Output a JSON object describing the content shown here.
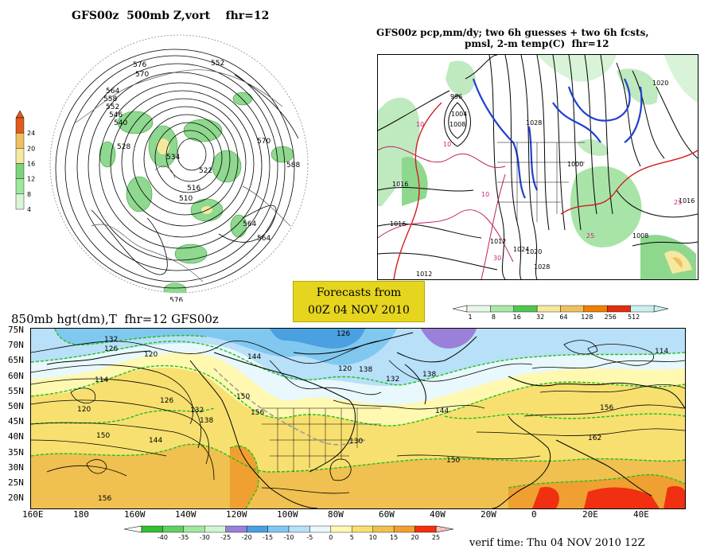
{
  "panel1": {
    "title": "GFS00z  500mb Z,vort    fhr=12",
    "colorbar_ticks": [
      "24",
      "20",
      "16",
      "12",
      "8",
      "4"
    ],
    "colorbar_colors": [
      "#e05a1a",
      "#f0c060",
      "#f5e9a0",
      "#7dd47d",
      "#9ee89e",
      "#d8f5d8"
    ],
    "contour_labels": [
      "576",
      "570",
      "564",
      "558",
      "552",
      "546",
      "540",
      "534",
      "528",
      "522",
      "516",
      "510",
      "552",
      "564",
      "576",
      "570",
      "564",
      "588"
    ]
  },
  "panel2": {
    "title_line1": "GFS00z pcp,mm/dy; two 6h guesses + two 6h fcsts,",
    "title_line2": "pmsl, 2-m temp(C)  fhr=12",
    "colorbar_ticks": [
      "1",
      "8",
      "16",
      "32",
      "64",
      "128",
      "256",
      "512"
    ],
    "colorbar_colors": [
      "#e8f8e8",
      "#a8e8a8",
      "#50c850",
      "#f5e9a0",
      "#f0c060",
      "#f08000",
      "#e03010",
      "#c8f0f0"
    ],
    "isobar_labels": [
      "1020",
      "1016",
      "1012",
      "1008",
      "1004",
      "1000",
      "1016",
      "1020",
      "1024",
      "1028",
      "1024",
      "1028",
      "996",
      "1012",
      "1008"
    ]
  },
  "forecast_box": {
    "line1": "Forecasts from",
    "line2": "00Z 04 NOV 2010"
  },
  "panel3": {
    "title": "850mb hgt(dm),T  fhr=12 GFS00z",
    "lat_labels": [
      "75N",
      "70N",
      "65N",
      "60N",
      "55N",
      "50N",
      "45N",
      "40N",
      "35N",
      "30N",
      "25N",
      "20N"
    ],
    "lon_labels": [
      "160E",
      "180",
      "160W",
      "140W",
      "120W",
      "100W",
      "80W",
      "60W",
      "40W",
      "20W",
      "0",
      "20E",
      "40E"
    ],
    "height_labels": [
      "132",
      "126",
      "120",
      "114",
      "120",
      "126",
      "132",
      "138",
      "144",
      "150",
      "156",
      "144",
      "150",
      "156",
      "138",
      "132",
      "126",
      "120",
      "114",
      "156",
      "162",
      "150",
      "144",
      "138",
      "130"
    ],
    "colorbar_ticks": [
      "-40",
      "-35",
      "-30",
      "-25",
      "-20",
      "-15",
      "-10",
      "-5",
      "0",
      "5",
      "10",
      "15",
      "20",
      "25"
    ],
    "colorbar_colors": [
      "#30c030",
      "#60d060",
      "#a0e8a0",
      "#d0f5d0",
      "#9a80d8",
      "#4aa0e0",
      "#80c8f0",
      "#b8e0f8",
      "#e8f8fc",
      "#fff8b0",
      "#f8e070",
      "#f0c050",
      "#f0a030",
      "#f03010"
    ],
    "verif_time": "verif time: Thu 04 NOV 2010 12Z"
  }
}
